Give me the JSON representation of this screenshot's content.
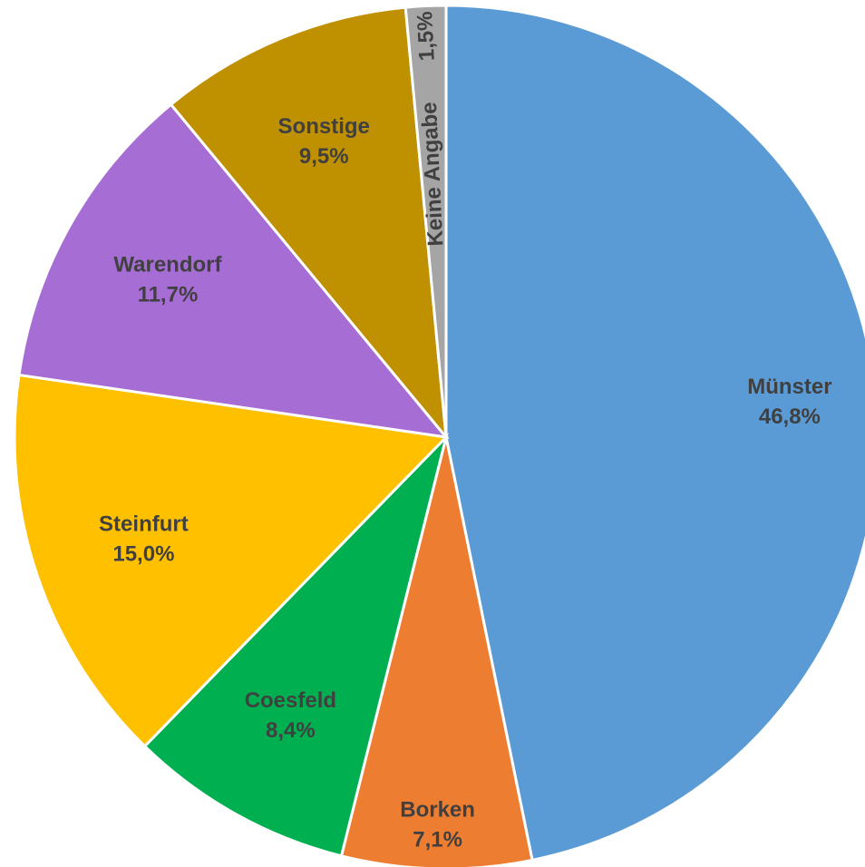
{
  "chart_data": {
    "type": "pie",
    "categories": [
      "Münster",
      "Borken",
      "Coesfeld",
      "Steinfurt",
      "Warendorf",
      "Sonstige",
      "Keine Angabe"
    ],
    "values": [
      46.8,
      7.1,
      8.4,
      15.0,
      11.7,
      9.5,
      1.5
    ],
    "value_labels": [
      "46,8%",
      "7,1%",
      "8,4%",
      "15,0%",
      "11,7%",
      "9,5%",
      "1,5%"
    ],
    "colors": [
      "#5b9bd5",
      "#ed7d31",
      "#00b050",
      "#ffc000",
      "#a66dd4",
      "#bf9000",
      "#a5a5a5"
    ]
  }
}
